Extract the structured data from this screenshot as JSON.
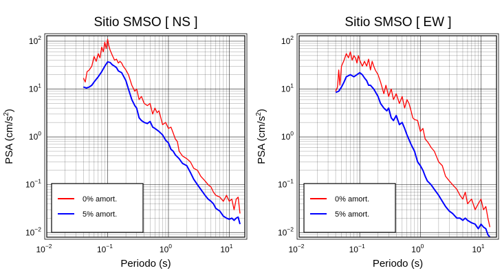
{
  "chart_data": [
    {
      "type": "line",
      "title": "Sitio SMSO [ NS ]",
      "xlabel": "Periodo (s)",
      "ylabel_main": "PSA (cm/s",
      "ylabel_sup": "2",
      "ylabel_close": ")",
      "x_scale": "log",
      "y_scale": "log",
      "xlim": [
        0.01,
        18
      ],
      "ylim": [
        0.008,
        130
      ],
      "grid": true,
      "legend_position": "bottom-left",
      "x_ticks": [
        {
          "base": "10",
          "exp": "−2",
          "value": 0.01
        },
        {
          "base": "10",
          "exp": "−1",
          "value": 0.1
        },
        {
          "base": "10",
          "exp": "0",
          "value": 1
        },
        {
          "base": "10",
          "exp": "1",
          "value": 10
        }
      ],
      "y_ticks": [
        {
          "base": "10",
          "exp": "−2",
          "value": 0.01
        },
        {
          "base": "10",
          "exp": "−1",
          "value": 0.1
        },
        {
          "base": "10",
          "exp": "0",
          "value": 1
        },
        {
          "base": "10",
          "exp": "1",
          "value": 10
        },
        {
          "base": "10",
          "exp": "2",
          "value": 100
        }
      ],
      "series": [
        {
          "name": "0% amort.",
          "color": "#ff0000",
          "x": [
            0.04,
            0.043,
            0.046,
            0.05,
            0.055,
            0.06,
            0.065,
            0.07,
            0.075,
            0.08,
            0.085,
            0.09,
            0.095,
            0.1,
            0.105,
            0.11,
            0.12,
            0.13,
            0.14,
            0.15,
            0.16,
            0.17,
            0.18,
            0.2,
            0.22,
            0.25,
            0.28,
            0.3,
            0.33,
            0.36,
            0.4,
            0.45,
            0.5,
            0.55,
            0.6,
            0.65,
            0.7,
            0.75,
            0.8,
            0.9,
            1.0,
            1.1,
            1.2,
            1.3,
            1.4,
            1.5,
            1.7,
            2.0,
            2.3,
            2.6,
            3.0,
            3.4,
            4.0,
            4.5,
            5.0,
            5.5,
            6.0,
            7.0,
            8.0,
            9.0,
            10.0,
            11.0,
            12.0,
            13.0,
            14.0,
            15.0
          ],
          "y": [
            17,
            14,
            23,
            25,
            30,
            48,
            38,
            55,
            45,
            75,
            60,
            95,
            70,
            110,
            80,
            65,
            50,
            40,
            42,
            35,
            38,
            35,
            30,
            25,
            20,
            12,
            9,
            10,
            6,
            7,
            5,
            4.5,
            5,
            3,
            4,
            3.2,
            3.5,
            2.5,
            1.8,
            2,
            1.5,
            1.6,
            1.2,
            0.9,
            0.8,
            0.5,
            0.4,
            0.35,
            0.3,
            0.22,
            0.2,
            0.15,
            0.12,
            0.1,
            0.09,
            0.07,
            0.06,
            0.055,
            0.045,
            0.06,
            0.045,
            0.05,
            0.03,
            0.05,
            0.055,
            0.025
          ]
        },
        {
          "name": "5% amort.",
          "color": "#0000ff",
          "x": [
            0.04,
            0.045,
            0.05,
            0.055,
            0.06,
            0.07,
            0.08,
            0.09,
            0.1,
            0.11,
            0.12,
            0.13,
            0.14,
            0.15,
            0.17,
            0.2,
            0.22,
            0.25,
            0.28,
            0.3,
            0.33,
            0.36,
            0.4,
            0.45,
            0.5,
            0.55,
            0.6,
            0.7,
            0.8,
            0.9,
            1.0,
            1.1,
            1.2,
            1.3,
            1.5,
            1.7,
            2.0,
            2.3,
            2.6,
            3.0,
            3.4,
            4.0,
            4.5,
            5.0,
            5.5,
            6.0,
            7.0,
            8.0,
            9.0,
            10.0,
            11.0,
            12.0,
            13.0,
            14.0,
            15.0
          ],
          "y": [
            11,
            10.5,
            11,
            12,
            14,
            18,
            23,
            30,
            37,
            36,
            32,
            30,
            28,
            24,
            22,
            15,
            10,
            6,
            4.5,
            4,
            2.5,
            2.2,
            2,
            1.9,
            2.1,
            1.6,
            1.5,
            1.3,
            1.1,
            0.85,
            0.75,
            0.55,
            0.5,
            0.42,
            0.35,
            0.28,
            0.25,
            0.18,
            0.13,
            0.1,
            0.08,
            0.06,
            0.05,
            0.045,
            0.04,
            0.032,
            0.028,
            0.022,
            0.02,
            0.019,
            0.02,
            0.018,
            0.02,
            0.021,
            0.015
          ]
        }
      ]
    },
    {
      "type": "line",
      "title": "Sitio SMSO [ EW ]",
      "xlabel": "Periodo (s)",
      "ylabel_main": "PSA (cm/s",
      "ylabel_sup": "2",
      "ylabel_close": ")",
      "x_scale": "log",
      "y_scale": "log",
      "xlim": [
        0.01,
        18
      ],
      "ylim": [
        0.008,
        130
      ],
      "grid": true,
      "legend_position": "bottom-left",
      "x_ticks": [
        {
          "base": "10",
          "exp": "−2",
          "value": 0.01
        },
        {
          "base": "10",
          "exp": "−1",
          "value": 0.1
        },
        {
          "base": "10",
          "exp": "0",
          "value": 1
        },
        {
          "base": "10",
          "exp": "1",
          "value": 10
        }
      ],
      "y_ticks": [
        {
          "base": "10",
          "exp": "−2",
          "value": 0.01
        },
        {
          "base": "10",
          "exp": "−1",
          "value": 0.1
        },
        {
          "base": "10",
          "exp": "0",
          "value": 1
        },
        {
          "base": "10",
          "exp": "1",
          "value": 10
        },
        {
          "base": "10",
          "exp": "2",
          "value": 100
        }
      ],
      "series": [
        {
          "name": "0% amort.",
          "color": "#ff0000",
          "x": [
            0.04,
            0.043,
            0.045,
            0.047,
            0.05,
            0.055,
            0.06,
            0.065,
            0.07,
            0.075,
            0.08,
            0.085,
            0.09,
            0.095,
            0.1,
            0.11,
            0.12,
            0.13,
            0.14,
            0.15,
            0.16,
            0.17,
            0.18,
            0.2,
            0.22,
            0.25,
            0.27,
            0.3,
            0.33,
            0.36,
            0.4,
            0.45,
            0.5,
            0.55,
            0.6,
            0.65,
            0.7,
            0.75,
            0.8,
            0.9,
            1.0,
            1.1,
            1.2,
            1.3,
            1.4,
            1.5,
            1.7,
            2.0,
            2.3,
            2.6,
            3.0,
            3.4,
            4.0,
            4.5,
            5.0,
            5.5,
            6.0,
            7.0,
            8.0,
            9.0,
            10.0,
            11.0,
            12.0,
            13.0,
            14.0
          ],
          "y": [
            9,
            11,
            25,
            12,
            30,
            40,
            55,
            45,
            60,
            40,
            50,
            45,
            35,
            50,
            40,
            30,
            38,
            30,
            42,
            25,
            38,
            30,
            25,
            20,
            14,
            8,
            12,
            7,
            10,
            6,
            8,
            5,
            7,
            4,
            6,
            5,
            3.5,
            2.5,
            2.3,
            2.2,
            1.3,
            1.5,
            0.9,
            0.8,
            0.7,
            0.6,
            0.5,
            0.3,
            0.25,
            0.15,
            0.12,
            0.1,
            0.08,
            0.06,
            0.05,
            0.07,
            0.04,
            0.05,
            0.03,
            0.04,
            0.05,
            0.03,
            0.035,
            0.02,
            0.013
          ]
        },
        {
          "name": "5% amort.",
          "color": "#0000ff",
          "x": [
            0.04,
            0.045,
            0.05,
            0.055,
            0.06,
            0.07,
            0.08,
            0.09,
            0.1,
            0.11,
            0.12,
            0.13,
            0.14,
            0.15,
            0.17,
            0.2,
            0.22,
            0.25,
            0.28,
            0.3,
            0.33,
            0.36,
            0.4,
            0.45,
            0.5,
            0.55,
            0.6,
            0.7,
            0.8,
            0.9,
            1.0,
            1.1,
            1.2,
            1.3,
            1.5,
            1.7,
            2.0,
            2.3,
            2.6,
            3.0,
            3.4,
            4.0,
            4.5,
            5.0,
            5.5,
            6.0,
            7.0,
            8.0,
            9.0,
            10.0,
            11.0,
            12.0,
            13.0,
            14.0
          ],
          "y": [
            8.5,
            9,
            11,
            14,
            18,
            20,
            18,
            20,
            22,
            20,
            17,
            15,
            12,
            12,
            10,
            7,
            5,
            4,
            3.5,
            4,
            2.5,
            2.2,
            2.8,
            1.8,
            2,
            1.5,
            1.1,
            0.7,
            0.5,
            0.3,
            0.25,
            0.2,
            0.15,
            0.12,
            0.1,
            0.08,
            0.06,
            0.045,
            0.035,
            0.028,
            0.025,
            0.02,
            0.02,
            0.018,
            0.02,
            0.018,
            0.016,
            0.015,
            0.012,
            0.015,
            0.013,
            0.012,
            0.009,
            0.008
          ]
        }
      ]
    }
  ]
}
